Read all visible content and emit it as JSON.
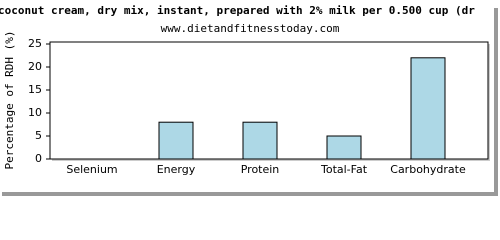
{
  "chart_data": {
    "type": "bar",
    "title": "coconut cream, dry mix, instant, prepared with 2% milk per 0.500 cup (dr",
    "subtitle": "www.dietandfitnesstoday.com",
    "y_label": "Percentage of RDH (%)",
    "categories": [
      "Selenium",
      "Energy",
      "Protein",
      "Total-Fat",
      "Carbohydrate"
    ],
    "values": [
      0,
      8,
      8,
      5,
      22
    ],
    "color": "#add8e6",
    "ylim": [
      0,
      25
    ],
    "yticks": [
      0,
      5,
      10,
      15,
      20,
      25
    ],
    "grid": false
  }
}
